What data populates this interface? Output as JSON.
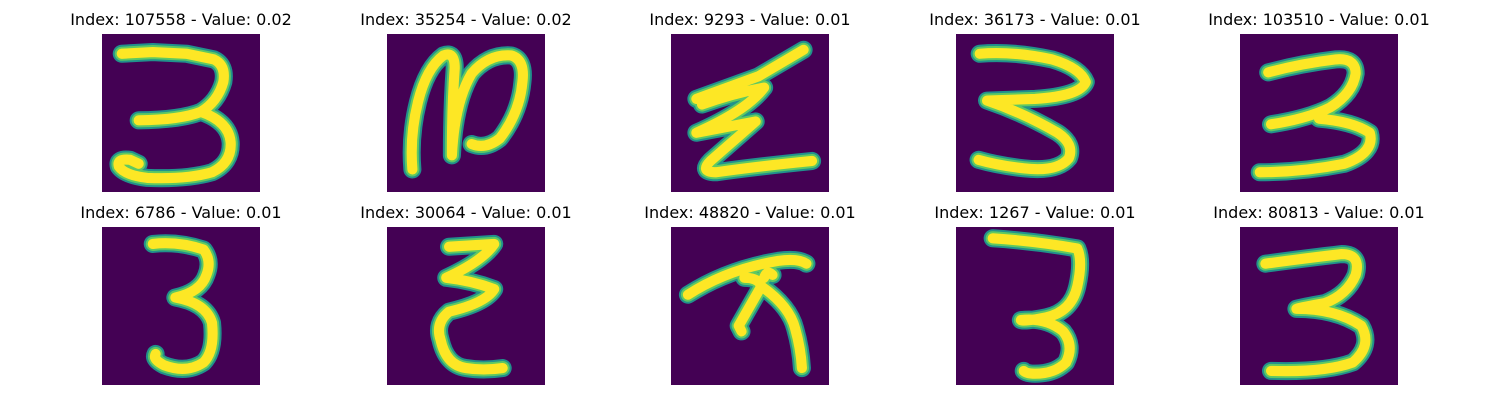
{
  "colors": {
    "background": "#440154",
    "stroke_outer": "#21918c",
    "stroke_mid": "#5ec962",
    "stroke_core": "#fde725"
  },
  "panels": [
    {
      "index_label": "Index: 107558 - Value: 0.02",
      "digit": "3"
    },
    {
      "index_label": "Index: 35254 - Value: 0.02",
      "digit": "2"
    },
    {
      "index_label": "Index: 9293 - Value: 0.01",
      "digit": "z"
    },
    {
      "index_label": "Index: 36173 - Value: 0.01",
      "digit": "3"
    },
    {
      "index_label": "Index: 103510 - Value: 0.01",
      "digit": "3"
    },
    {
      "index_label": "Index: 6786 - Value: 0.01",
      "digit": "3"
    },
    {
      "index_label": "Index: 30064 - Value: 0.01",
      "digit": "3"
    },
    {
      "index_label": "Index: 48820 - Value: 0.01",
      "digit": "7"
    },
    {
      "index_label": "Index: 1267 - Value: 0.01",
      "digit": "3"
    },
    {
      "index_label": "Index: 80813 - Value: 0.01",
      "digit": "3"
    }
  ]
}
